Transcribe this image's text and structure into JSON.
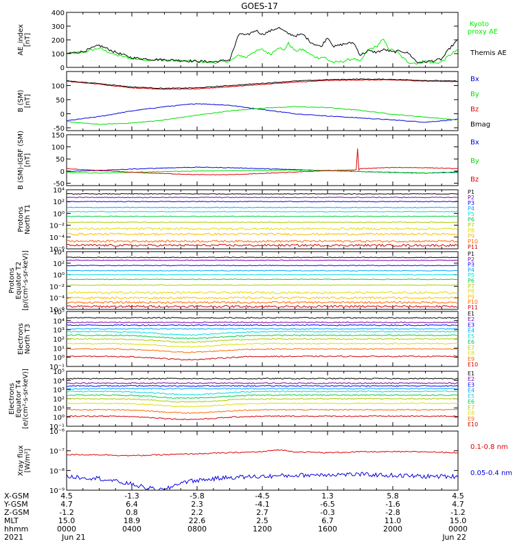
{
  "title": "GOES-17",
  "chart_data": [
    {
      "type": "line",
      "id": "ae",
      "ylabel": [
        "AE_index",
        "[nT]"
      ],
      "ylim": [
        0,
        400
      ],
      "yticks": [
        "400",
        "300",
        "200",
        "100",
        "0"
      ],
      "ylog": false,
      "series": [
        {
          "name": "Kyoto proxy AE",
          "color": "#00ee00",
          "x": [
            0,
            1,
            2,
            3,
            4,
            5,
            6,
            7,
            8,
            9,
            10,
            10.6,
            11,
            11.4,
            12,
            12.5,
            13,
            13.3,
            13.6,
            14,
            14.5,
            15,
            15.4,
            15.8,
            16,
            16.4,
            17,
            17.6,
            18,
            18.5,
            19,
            19.4,
            19.8,
            20.2,
            20.6,
            21,
            21.5,
            22,
            22.6,
            23,
            23.5,
            24
          ],
          "y": [
            100,
            110,
            140,
            90,
            65,
            55,
            55,
            48,
            42,
            35,
            45,
            90,
            70,
            110,
            130,
            95,
            150,
            120,
            175,
            120,
            130,
            90,
            70,
            75,
            55,
            35,
            45,
            65,
            40,
            130,
            150,
            205,
            130,
            120,
            70,
            35,
            30,
            45,
            30,
            40,
            90,
            130
          ]
        },
        {
          "name": "Themis AE",
          "color": "#000000",
          "x": [
            0,
            1,
            2,
            3,
            4,
            5,
            6,
            7,
            8,
            9,
            10,
            10.6,
            11,
            11.6,
            12,
            12.6,
            13,
            13.5,
            14,
            14.5,
            15,
            15.6,
            16,
            16.4,
            17,
            17.6,
            18,
            18.5,
            19,
            19.5,
            20,
            20.5,
            21,
            21.5,
            22,
            22.6,
            23,
            23.5,
            24
          ],
          "y": [
            100,
            115,
            160,
            110,
            70,
            60,
            55,
            50,
            45,
            40,
            55,
            250,
            230,
            270,
            240,
            270,
            290,
            250,
            230,
            240,
            180,
            150,
            220,
            150,
            170,
            180,
            90,
            120,
            110,
            130,
            110,
            120,
            100,
            35,
            40,
            50,
            60,
            140,
            200
          ]
        }
      ]
    },
    {
      "type": "line",
      "id": "bsm",
      "ylabel": [
        "B (SM)",
        "[nT]"
      ],
      "ylim": [
        -60,
        150
      ],
      "yticks": [
        "100",
        "50",
        "0",
        "-50"
      ],
      "ylog": false,
      "series": [
        {
          "name": "Bx",
          "color": "#0000dd",
          "x": [
            0,
            2,
            4,
            6,
            8,
            10,
            12,
            14,
            16,
            18,
            20,
            22,
            24
          ],
          "y": [
            -25,
            -10,
            10,
            25,
            36,
            30,
            15,
            0,
            -8,
            -15,
            -22,
            -30,
            -20
          ]
        },
        {
          "name": "By",
          "color": "#00dd00",
          "x": [
            0,
            2,
            4,
            6,
            8,
            10,
            12,
            14,
            16,
            18,
            20,
            22,
            24
          ],
          "y": [
            -28,
            -38,
            -33,
            -22,
            -5,
            10,
            20,
            25,
            22,
            12,
            -2,
            -12,
            -22
          ]
        },
        {
          "name": "Bz",
          "color": "#dd0000",
          "x": [
            0,
            2,
            4,
            6,
            8,
            10,
            12,
            14,
            16,
            18,
            20,
            22,
            24
          ],
          "y": [
            115,
            105,
            92,
            87,
            88,
            96,
            104,
            112,
            118,
            120,
            120,
            116,
            114
          ]
        },
        {
          "name": "Bmag",
          "color": "#000000",
          "x": [
            0,
            2,
            4,
            6,
            8,
            10,
            12,
            14,
            16,
            18,
            20,
            22,
            24
          ],
          "y": [
            117,
            107,
            95,
            90,
            92,
            100,
            108,
            116,
            121,
            123,
            122,
            118,
            116
          ]
        }
      ]
    },
    {
      "type": "line",
      "id": "bigrf",
      "ylabel": [
        "B (SM)-IGRF (SM)",
        "[nT]"
      ],
      "ylim": [
        -60,
        150
      ],
      "yticks": [
        "150",
        "100",
        "50",
        "0",
        "-50"
      ],
      "ylog": false,
      "series": [
        {
          "name": "Bx",
          "color": "#0000dd",
          "x": [
            0,
            2,
            4,
            6,
            8,
            10,
            12,
            14,
            16,
            18,
            20,
            22,
            24
          ],
          "y": [
            -2,
            3,
            8,
            13,
            16,
            14,
            10,
            6,
            2,
            -2,
            -6,
            -8,
            -4
          ]
        },
        {
          "name": "By",
          "color": "#00dd00",
          "x": [
            0,
            2,
            4,
            6,
            8,
            10,
            12,
            14,
            16,
            18,
            20,
            22,
            24
          ],
          "y": [
            -6,
            -8,
            -5,
            -2,
            0,
            2,
            3,
            4,
            2,
            -2,
            -5,
            -8,
            -6
          ]
        },
        {
          "name": "Bz",
          "color": "#dd0000",
          "x": [
            0,
            2,
            4,
            6,
            8,
            10,
            12,
            14,
            16,
            17.8,
            17.85,
            17.9,
            18,
            20,
            22,
            24
          ],
          "y": [
            10,
            2,
            -5,
            -10,
            -15,
            -15,
            -10,
            -4,
            2,
            5,
            115,
            3,
            10,
            15,
            14,
            10
          ]
        }
      ]
    },
    {
      "type": "line",
      "id": "pnt1",
      "ylabel": [
        "Protons",
        "North T1"
      ],
      "ylim_exp": [
        -6,
        4
      ],
      "yticks": [
        "10⁴",
        "10²",
        "10⁰",
        "10⁻²",
        "10⁻⁴",
        "10⁻⁶"
      ],
      "ylog": true,
      "series": [
        {
          "name": "P1",
          "color": "#000000",
          "level": 3.3
        },
        {
          "name": "P2",
          "color": "#7a00aa",
          "level": 2.7
        },
        {
          "name": "P3",
          "color": "#0000ff",
          "level": 2.0
        },
        {
          "name": "P4",
          "color": "#00a0ff",
          "level": 1.0
        },
        {
          "name": "P5",
          "color": "#00dddd",
          "level": 0.3
        },
        {
          "name": "P6",
          "color": "#00cc44",
          "level": -0.5
        },
        {
          "name": "P7",
          "color": "#aacc00",
          "level": -1.5
        },
        {
          "name": "P8",
          "color": "#dddd00",
          "level": -2.6
        },
        {
          "name": "P9",
          "color": "#ffbb00",
          "level": -3.5
        },
        {
          "name": "P10",
          "color": "#ff6600",
          "level": -4.7
        },
        {
          "name": "P11",
          "color": "#cc0000",
          "level": -5.4
        }
      ]
    },
    {
      "type": "line",
      "id": "peqt2",
      "ylabel": [
        "Protons",
        "Equator T2",
        "[p/(cm²-s-sr-keV)]"
      ],
      "ylim_exp": [
        -6,
        4
      ],
      "yticks": [
        "10⁴",
        "10²",
        "10⁰",
        "10⁻²",
        "10⁻⁴",
        "10⁻⁶"
      ],
      "ylog": true,
      "series": [
        {
          "name": "P1",
          "color": "#000000",
          "level": 3.0
        },
        {
          "name": "P2",
          "color": "#7a00aa",
          "level": 2.5
        },
        {
          "name": "P3",
          "color": "#0000ff",
          "level": 1.6
        },
        {
          "name": "P4",
          "color": "#00a0ff",
          "level": 0.7
        },
        {
          "name": "P5",
          "color": "#00dddd",
          "level": 0.0
        },
        {
          "name": "P6",
          "color": "#00cc44",
          "level": -0.8
        },
        {
          "name": "P7",
          "color": "#aacc00",
          "level": -1.8
        },
        {
          "name": "P8",
          "color": "#dddd00",
          "level": -3.1
        },
        {
          "name": "P9",
          "color": "#ffbb00",
          "level": -4.0
        },
        {
          "name": "P10",
          "color": "#ff6600",
          "level": -4.8
        },
        {
          "name": "P11",
          "color": "#cc0000",
          "level": -5.5
        }
      ]
    },
    {
      "type": "line",
      "id": "ent3",
      "ylabel": [
        "Electrons",
        "North T3"
      ],
      "ylim_exp": [
        -1,
        5
      ],
      "yticks": [
        "10⁵",
        "10⁴",
        "10³",
        "10²",
        "10¹",
        "10⁰",
        "10⁻¹"
      ],
      "ylog": true,
      "series": [
        {
          "name": "E1",
          "color": "#000000",
          "level": 4.3
        },
        {
          "name": "E2",
          "color": "#7a00aa",
          "level": 3.8
        },
        {
          "name": "E3",
          "color": "#0000ff",
          "level": 3.5
        },
        {
          "name": "E4",
          "color": "#00a0ff",
          "level": 3.1
        },
        {
          "name": "E5",
          "color": "#00dddd",
          "level": 2.8
        },
        {
          "name": "E6",
          "color": "#00cc44",
          "level": 2.4
        },
        {
          "name": "E7",
          "color": "#aacc00",
          "level": 2.0
        },
        {
          "name": "E8",
          "color": "#dddd00",
          "level": 1.5
        },
        {
          "name": "E9",
          "color": "#ff6600",
          "level": 0.9
        },
        {
          "name": "E10",
          "color": "#cc0000",
          "level": 0.1
        }
      ]
    },
    {
      "type": "line",
      "id": "eeqt4",
      "ylabel": [
        "Electrons",
        "Equator T4",
        "[e/(cm²-s-sr-keV)]"
      ],
      "ylim_exp": [
        -1,
        5
      ],
      "yticks": [
        "10⁵",
        "10⁴",
        "10³",
        "10²",
        "10¹",
        "10⁰",
        "10⁻¹"
      ],
      "ylog": true,
      "series": [
        {
          "name": "E1",
          "color": "#000000",
          "level": 4.2
        },
        {
          "name": "E2",
          "color": "#7a00aa",
          "level": 3.7
        },
        {
          "name": "E3",
          "color": "#0000ff",
          "level": 3.4
        },
        {
          "name": "E4",
          "color": "#00a0ff",
          "level": 3.1
        },
        {
          "name": "E5",
          "color": "#00dddd",
          "level": 2.8
        },
        {
          "name": "E6",
          "color": "#00cc44",
          "level": 2.4
        },
        {
          "name": "E7",
          "color": "#aacc00",
          "level": 2.0
        },
        {
          "name": "E8",
          "color": "#dddd00",
          "level": 1.5
        },
        {
          "name": "E9",
          "color": "#ff6600",
          "level": 0.8
        },
        {
          "name": "E10",
          "color": "#cc0000",
          "level": 0.1
        }
      ]
    },
    {
      "type": "line",
      "id": "xray",
      "ylabel": [
        "Xray flux",
        "[W/m²]"
      ],
      "ylim_exp": [
        -9,
        -6
      ],
      "yticks": [
        "10⁻⁶",
        "10⁻⁷",
        "10⁻⁸",
        "10⁻⁹"
      ],
      "ylog": true,
      "series": [
        {
          "name": "0.1-0.8 nm",
          "color": "#dd0000",
          "x": [
            0,
            2,
            4,
            6,
            8,
            10,
            12,
            13,
            14,
            16,
            18,
            20,
            22,
            24
          ],
          "logy": [
            -7.2,
            -7.2,
            -7.25,
            -7.2,
            -7.15,
            -7.1,
            -7.05,
            -6.95,
            -7.05,
            -7.1,
            -7.05,
            -7.05,
            -7.05,
            -7.1
          ]
        },
        {
          "name": "0.05-0.4 nm",
          "color": "#0000dd",
          "x": [
            0,
            2,
            4,
            5,
            6,
            6.5,
            7,
            8,
            10,
            12,
            14,
            16,
            18,
            20,
            22,
            24
          ],
          "logy": [
            -8.3,
            -8.4,
            -8.7,
            -8.9,
            -9.0,
            -8.8,
            -8.6,
            -8.5,
            -8.35,
            -8.3,
            -8.25,
            -8.2,
            -8.2,
            -8.25,
            -8.3,
            -8.3
          ]
        }
      ]
    }
  ],
  "x_axis": {
    "row_labels": [
      "X-GSM",
      "Y-GSM",
      "Z-GSM",
      "MLT",
      "hhmm",
      "2021"
    ],
    "columns": [
      {
        "hours": 0,
        "values": [
          "4.5",
          "4.7",
          "-1.2",
          "15.0",
          "0000",
          "Jun 21"
        ]
      },
      {
        "hours": 4,
        "values": [
          "-1.3",
          "6.4",
          "0.8",
          "18.9",
          "0400",
          ""
        ]
      },
      {
        "hours": 8,
        "values": [
          "-5.8",
          "2.3",
          "2.2",
          "22.6",
          "0800",
          ""
        ]
      },
      {
        "hours": 12,
        "values": [
          "-4.5",
          "-4.1",
          "2.7",
          "2.5",
          "1200",
          ""
        ]
      },
      {
        "hours": 16,
        "values": [
          "1.3",
          "-6.5",
          "-0.3",
          "6.7",
          "1600",
          ""
        ]
      },
      {
        "hours": 20,
        "values": [
          "5.8",
          "-1.6",
          "-2.8",
          "11.0",
          "2000",
          ""
        ]
      },
      {
        "hours": 24,
        "values": [
          "4.5",
          "4.7",
          "-1.2",
          "15.0",
          "0000",
          "Jun 22"
        ]
      }
    ]
  }
}
